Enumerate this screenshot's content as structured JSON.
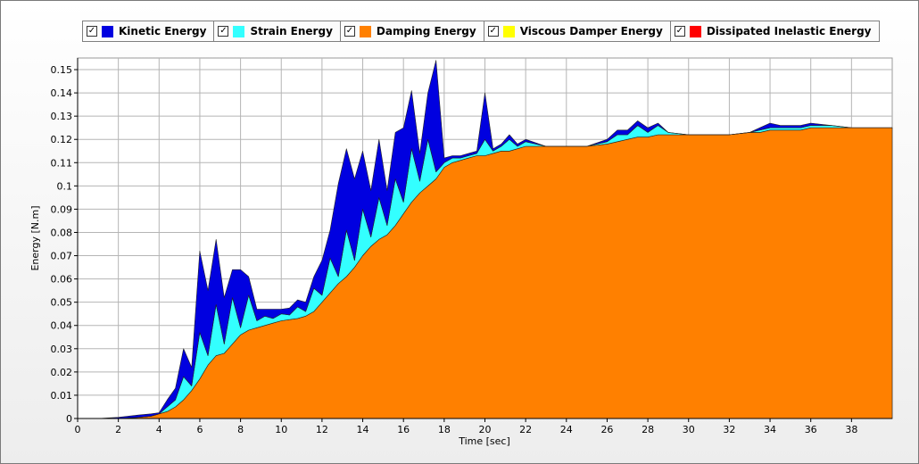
{
  "chart_data": {
    "type": "area",
    "stacked": true,
    "xlabel": "Time [sec]",
    "ylabel": "Energy [N.m]",
    "xlim": [
      0,
      40
    ],
    "ylim": [
      0,
      0.155
    ],
    "xticks": [
      "0",
      "2",
      "4",
      "6",
      "8",
      "10",
      "12",
      "14",
      "16",
      "18",
      "20",
      "22",
      "24",
      "26",
      "28",
      "30",
      "32",
      "34",
      "36",
      "38"
    ],
    "yticks": [
      "0",
      "0.01",
      "0.02",
      "0.03",
      "0.04",
      "0.05",
      "0.06",
      "0.07",
      "0.08",
      "0.09",
      "0.1",
      "0.11",
      "0.12",
      "0.13",
      "0.14",
      "0.15"
    ],
    "grid": true,
    "legend_position": "top",
    "x": [
      0,
      1,
      2,
      3,
      3.6,
      4,
      4.4,
      4.8,
      5.2,
      5.6,
      6,
      6.4,
      6.8,
      7.2,
      7.6,
      8,
      8.4,
      8.8,
      9.2,
      9.6,
      10,
      10.4,
      10.8,
      11.2,
      11.6,
      12,
      12.4,
      12.8,
      13.2,
      13.6,
      14,
      14.4,
      14.8,
      15.2,
      15.6,
      16,
      16.4,
      16.8,
      17.2,
      17.6,
      18,
      18.4,
      18.8,
      19.2,
      19.6,
      20,
      20.4,
      20.8,
      21.2,
      21.6,
      22,
      23,
      24,
      25,
      26,
      26.5,
      27,
      27.5,
      28,
      28.5,
      29,
      30,
      31,
      32,
      33,
      33.5,
      34,
      34.5,
      35,
      35.5,
      36,
      37,
      38,
      39,
      40
    ],
    "series": [
      {
        "name": "Dissipated Inelastic Energy",
        "color": "#ff0000",
        "values": [
          0,
          0,
          0,
          0,
          0,
          0,
          0,
          0,
          0,
          0,
          0,
          0,
          0,
          0,
          0,
          0,
          0,
          0,
          0,
          0,
          0,
          0,
          0,
          0,
          0,
          0,
          0,
          0,
          0,
          0,
          0,
          0,
          0,
          0,
          0,
          0,
          0,
          0,
          0,
          0,
          0,
          0,
          0,
          0,
          0,
          0,
          0,
          0,
          0,
          0,
          0,
          0,
          0,
          0,
          0,
          0,
          0,
          0,
          0,
          0,
          0,
          0,
          0,
          0,
          0,
          0,
          0,
          0,
          0,
          0,
          0,
          0,
          0,
          0,
          0
        ]
      },
      {
        "name": "Viscous Damper Energy",
        "color": "#ffff00",
        "values": [
          0,
          0,
          0,
          0,
          0,
          0,
          0,
          0,
          0,
          0,
          0,
          0,
          0,
          0,
          0,
          0,
          0,
          0,
          0,
          0,
          0,
          0,
          0,
          0,
          0,
          0,
          0,
          0,
          0,
          0,
          0,
          0,
          0,
          0,
          0,
          0,
          0,
          0,
          0,
          0,
          0,
          0,
          0,
          0,
          0,
          0,
          0,
          0,
          0,
          0,
          0,
          0,
          0,
          0,
          0,
          0,
          0,
          0,
          0,
          0,
          0,
          0,
          0,
          0,
          0,
          0,
          0,
          0,
          0,
          0,
          0,
          0,
          0,
          0,
          0
        ]
      },
      {
        "name": "Damping Energy",
        "color": "#ff8000",
        "values": [
          0,
          0,
          0,
          0.0005,
          0.001,
          0.002,
          0.003,
          0.005,
          0.008,
          0.012,
          0.017,
          0.023,
          0.027,
          0.028,
          0.032,
          0.036,
          0.038,
          0.039,
          0.04,
          0.041,
          0.042,
          0.0425,
          0.043,
          0.044,
          0.046,
          0.05,
          0.054,
          0.058,
          0.061,
          0.065,
          0.07,
          0.074,
          0.077,
          0.079,
          0.083,
          0.088,
          0.093,
          0.097,
          0.1,
          0.103,
          0.108,
          0.11,
          0.111,
          0.112,
          0.113,
          0.113,
          0.114,
          0.115,
          0.115,
          0.116,
          0.117,
          0.117,
          0.117,
          0.117,
          0.118,
          0.119,
          0.12,
          0.121,
          0.121,
          0.122,
          0.122,
          0.122,
          0.122,
          0.122,
          0.123,
          0.123,
          0.124,
          0.124,
          0.124,
          0.124,
          0.125,
          0.125,
          0.125,
          0.125,
          0.125
        ]
      },
      {
        "name": "Strain Energy",
        "color": "#33ffff",
        "values": [
          0,
          0,
          0,
          0,
          0,
          0,
          0.002,
          0.003,
          0.01,
          0.002,
          0.02,
          0.004,
          0.022,
          0.004,
          0.02,
          0.003,
          0.015,
          0.003,
          0.004,
          0.002,
          0.003,
          0.002,
          0.005,
          0.002,
          0.01,
          0.003,
          0.015,
          0.003,
          0.02,
          0.003,
          0.02,
          0.004,
          0.018,
          0.004,
          0.02,
          0.005,
          0.023,
          0.005,
          0.02,
          0.003,
          0.002,
          0.002,
          0.001,
          0.001,
          0.001,
          0.007,
          0.001,
          0.002,
          0.005,
          0.001,
          0.002,
          0,
          0,
          0,
          0.001,
          0.003,
          0.002,
          0.005,
          0.002,
          0.004,
          0.001,
          0,
          0,
          0,
          0,
          0.001,
          0.001,
          0.001,
          0.001,
          0.001,
          0.001,
          0.001,
          0,
          0,
          0
        ]
      },
      {
        "name": "Kinetic Energy",
        "color": "#0000e0",
        "values": [
          0,
          0,
          0.0005,
          0.001,
          0.001,
          0.0005,
          0.003,
          0.005,
          0.012,
          0.008,
          0.035,
          0.028,
          0.028,
          0.02,
          0.012,
          0.025,
          0.008,
          0.005,
          0.003,
          0.004,
          0.002,
          0.003,
          0.003,
          0.004,
          0.005,
          0.015,
          0.012,
          0.04,
          0.035,
          0.035,
          0.025,
          0.02,
          0.025,
          0.015,
          0.02,
          0.032,
          0.025,
          0.012,
          0.02,
          0.048,
          0.002,
          0.001,
          0.001,
          0.001,
          0.001,
          0.02,
          0.001,
          0.001,
          0.002,
          0.001,
          0.001,
          0,
          0,
          0,
          0.001,
          0.002,
          0.002,
          0.002,
          0.002,
          0.001,
          0,
          0,
          0,
          0,
          0,
          0.001,
          0.002,
          0.001,
          0.001,
          0.001,
          0.001,
          0,
          0,
          0,
          0
        ]
      }
    ]
  },
  "legend": [
    {
      "label": "Kinetic Energy",
      "color": "#0000e0",
      "checked": "✓"
    },
    {
      "label": "Strain Energy",
      "color": "#33ffff",
      "checked": "✓"
    },
    {
      "label": "Damping Energy",
      "color": "#ff8000",
      "checked": "✓"
    },
    {
      "label": "Viscous Damper Energy",
      "color": "#ffff00",
      "checked": "✓"
    },
    {
      "label": "Dissipated Inelastic Energy",
      "color": "#ff0000",
      "checked": "✓"
    }
  ]
}
